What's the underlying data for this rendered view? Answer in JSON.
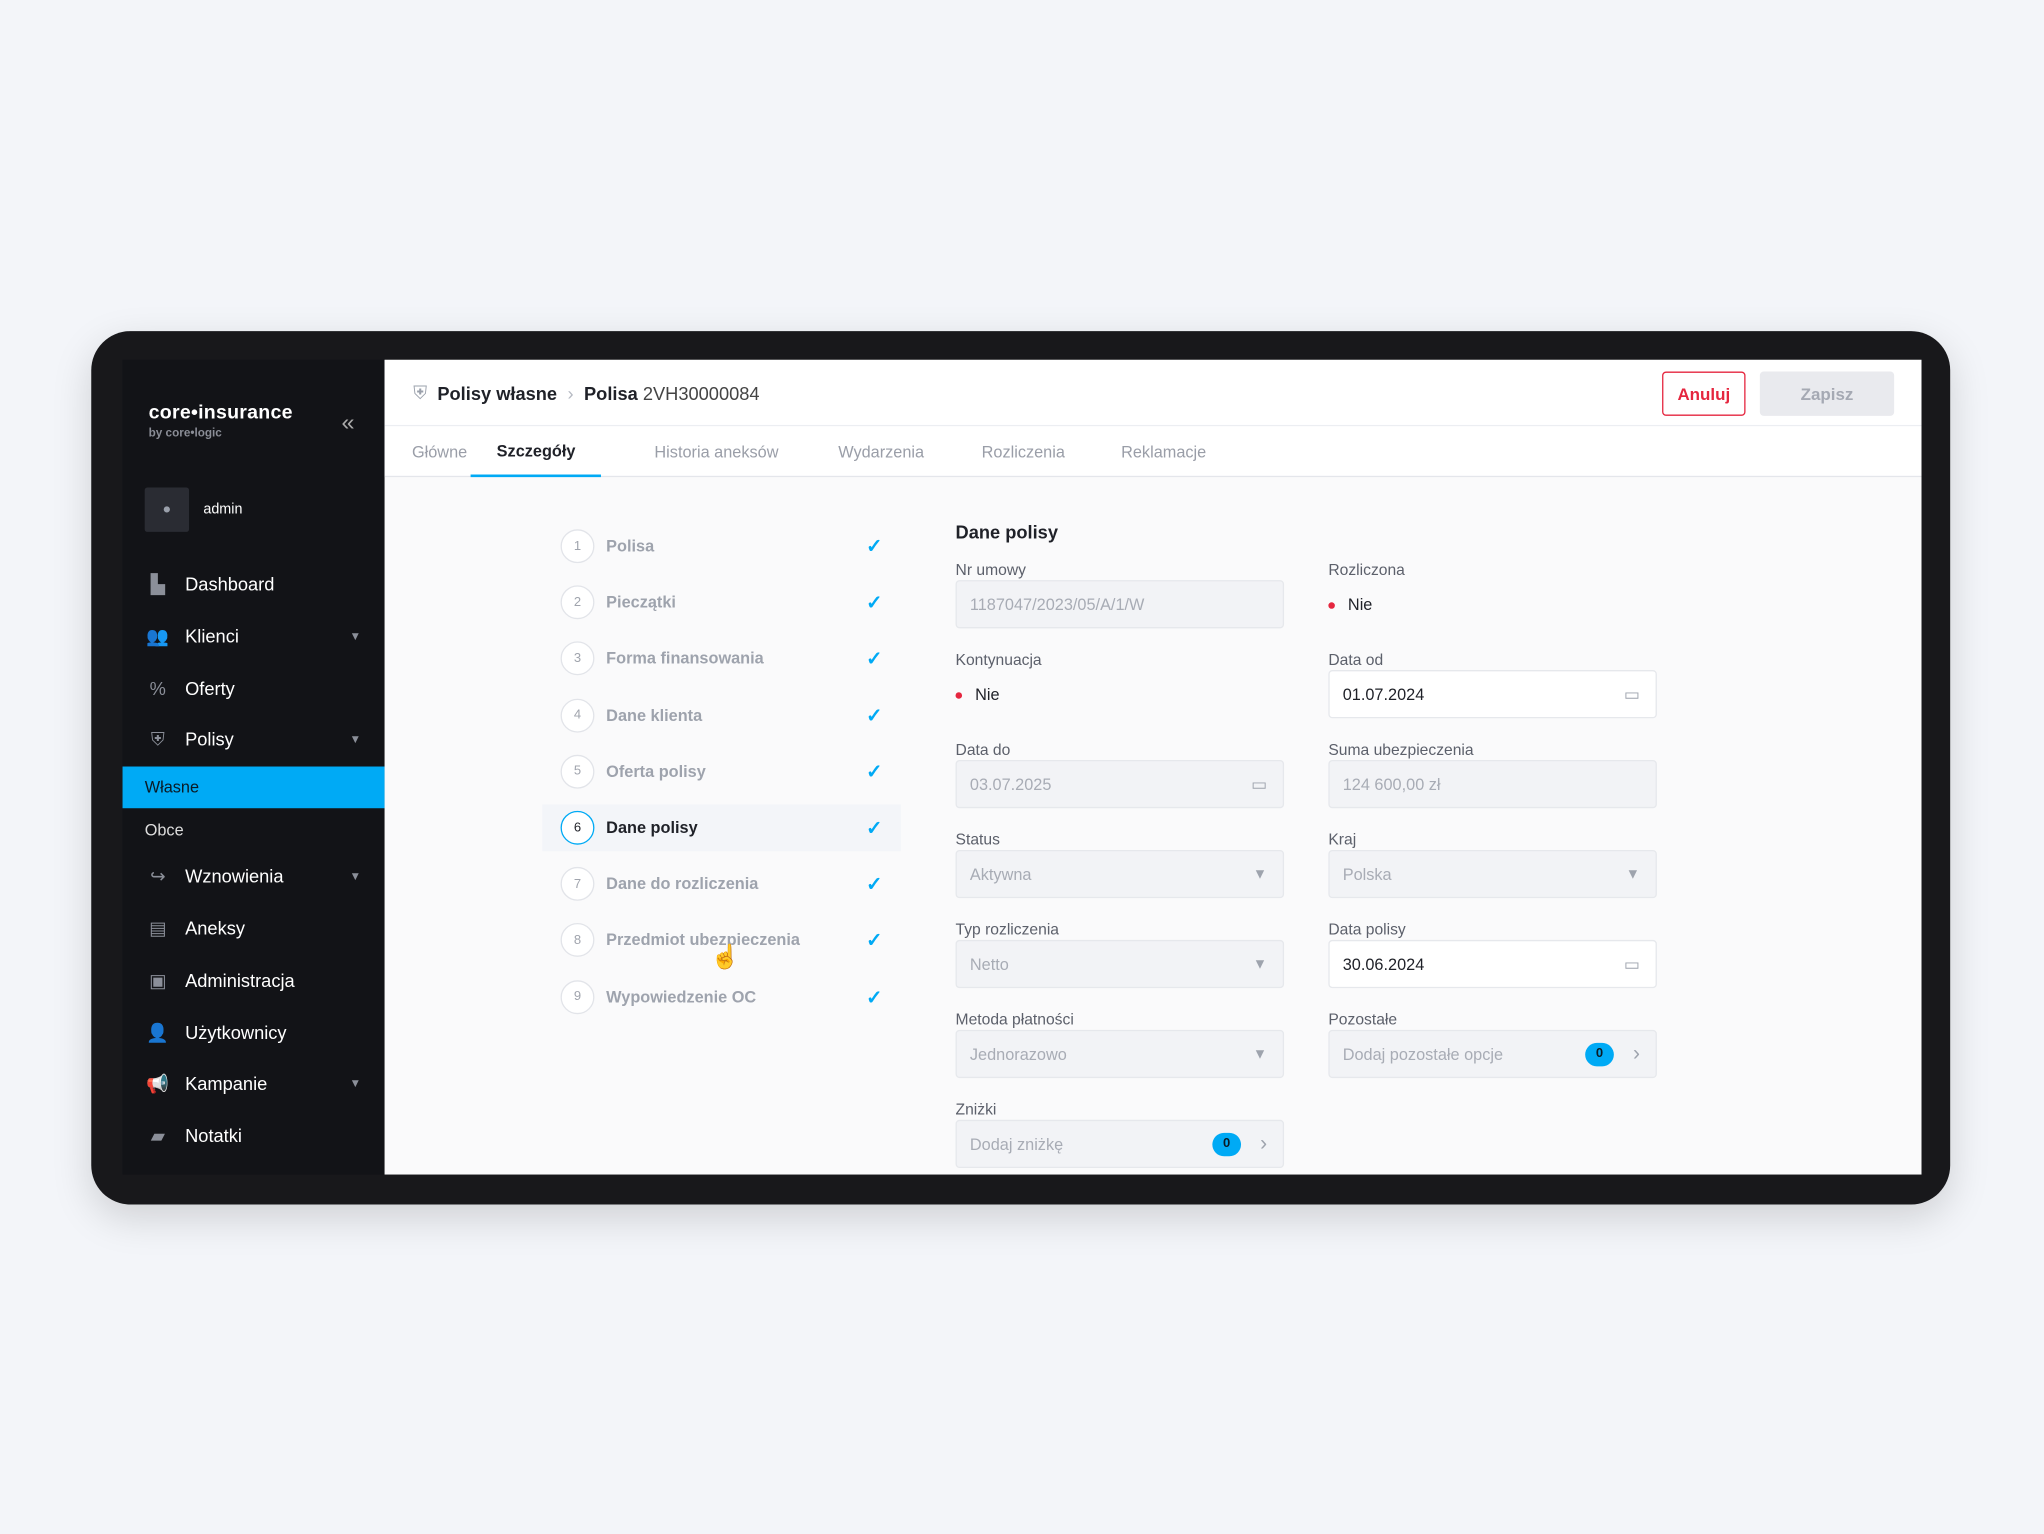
{
  "brand": {
    "name": "core•insurance",
    "sub": "by core•logic"
  },
  "user": {
    "name": "admin"
  },
  "sidebar": {
    "items": [
      {
        "label": "Dashboard",
        "icon": "dashboard-icon",
        "caret": false
      },
      {
        "label": "Klienci",
        "icon": "users-icon",
        "caret": true
      },
      {
        "label": "Oferty",
        "icon": "percent-icon",
        "caret": false
      },
      {
        "label": "Polisy",
        "icon": "shield-icon",
        "caret": true
      },
      {
        "label": "Wznowienia",
        "icon": "renew-icon",
        "caret": true
      },
      {
        "label": "Aneksy",
        "icon": "document-icon",
        "caret": false
      },
      {
        "label": "Administracja",
        "icon": "admin-icon",
        "caret": false
      },
      {
        "label": "Użytkownicy",
        "icon": "user-group-icon",
        "caret": false
      },
      {
        "label": "Kampanie",
        "icon": "megaphone-icon",
        "caret": true
      },
      {
        "label": "Notatki",
        "icon": "note-icon",
        "caret": false
      }
    ],
    "sub_items": [
      {
        "label": "Własne",
        "active": true
      },
      {
        "label": "Obce",
        "active": false
      }
    ]
  },
  "header": {
    "crumb1": "Polisy własne",
    "crumb2_bold": "Polisa",
    "crumb2_id": "2VH30000084",
    "cancel": "Anuluj",
    "save": "Zapisz"
  },
  "tabs": [
    {
      "label": "Główne"
    },
    {
      "label": "Szczegóły",
      "active": true
    },
    {
      "label": "Historia aneksów"
    },
    {
      "label": "Wydarzenia"
    },
    {
      "label": "Rozliczenia"
    },
    {
      "label": "Reklamacje"
    }
  ],
  "steps": [
    {
      "n": "1",
      "label": "Polisa"
    },
    {
      "n": "2",
      "label": "Pieczątki"
    },
    {
      "n": "3",
      "label": "Forma finansowania"
    },
    {
      "n": "4",
      "label": "Dane klienta"
    },
    {
      "n": "5",
      "label": "Oferta polisy"
    },
    {
      "n": "6",
      "label": "Dane polisy",
      "active": true
    },
    {
      "n": "7",
      "label": "Dane do rozliczenia"
    },
    {
      "n": "8",
      "label": "Przedmiot ubezpieczenia"
    },
    {
      "n": "9",
      "label": "Wypowiedzenie OC"
    }
  ],
  "form": {
    "title": "Dane polisy",
    "nr_umowy": {
      "label": "Nr umowy",
      "value": "1187047/2023/05/A/1/W"
    },
    "rozliczona": {
      "label": "Rozliczona",
      "value": "Nie"
    },
    "kontynuacja": {
      "label": "Kontynuacja",
      "value": "Nie"
    },
    "data_od": {
      "label": "Data od",
      "value": "01.07.2024"
    },
    "data_do": {
      "label": "Data do",
      "value": "03.07.2025"
    },
    "suma": {
      "label": "Suma ubezpieczenia",
      "value": "124 600,00 zł"
    },
    "status": {
      "label": "Status",
      "value": "Aktywna"
    },
    "kraj": {
      "label": "Kraj",
      "value": "Polska"
    },
    "typ": {
      "label": "Typ rozliczenia",
      "value": "Netto"
    },
    "data_polisy": {
      "label": "Data polisy",
      "value": "30.06.2024"
    },
    "metoda": {
      "label": "Metoda płatności",
      "value": "Jednorazowo"
    },
    "pozostale": {
      "label": "Pozostałe",
      "placeholder": "Dodaj pozostałe opcje",
      "count": "0"
    },
    "znizki": {
      "label": "Zniżki",
      "placeholder": "Dodaj zniżkę",
      "count": "0"
    }
  },
  "colors": {
    "accent": "#00aaf5",
    "danger": "#e5263f",
    "sidebar": "#121317"
  }
}
